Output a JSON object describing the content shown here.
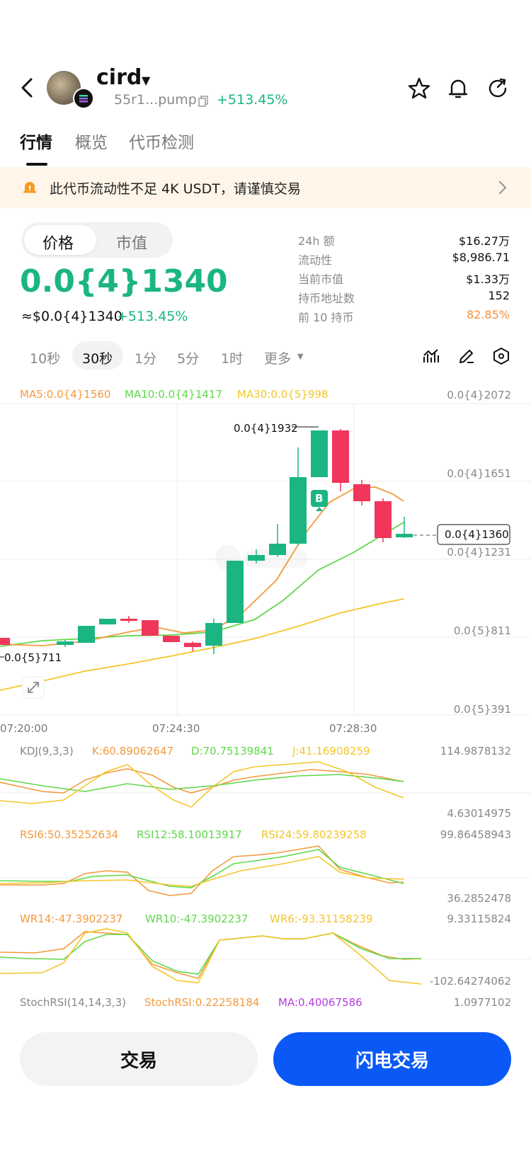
{
  "header": {
    "token_name": "cird",
    "address": "55r1...pump",
    "change": "+513.45%",
    "icons": [
      "back-arrow-icon",
      "star-icon",
      "bell-icon",
      "share-icon",
      "copy-icon",
      "solana-icon"
    ]
  },
  "tabs": [
    "行情",
    "概览",
    "代币检测"
  ],
  "warning": {
    "text": "此代币流动性不足 4K USDT，请谨慎交易"
  },
  "toggle": [
    "价格",
    "市值"
  ],
  "price": {
    "main": "0.0{4}1340",
    "usd": "≈$0.0{4}1340",
    "change": "+513.45%"
  },
  "stats": [
    {
      "label": "24h  额",
      "value": "$16.27万"
    },
    {
      "label": "流动性",
      "value": "$8,986.71"
    },
    {
      "label": "当前市值",
      "value": "$1.33万"
    },
    {
      "label": "持币地址数",
      "value": "152"
    },
    {
      "label": "前 10 持币",
      "value": "82.85%"
    }
  ],
  "intervals": [
    "10秒",
    "30秒",
    "1分",
    "5分",
    "1时",
    "更多"
  ],
  "ma_legend": {
    "ma5": "MA5:0.0{4}1560",
    "ma10": "MA10:0.0{4}1417",
    "ma30": "MA30:0.0{5}998"
  },
  "y_axis": [
    "0.0{4}2072",
    "0.0{4}1651",
    "0.0{4}1231",
    "0.0{5}811",
    "0.0{5}391"
  ],
  "x_axis": [
    "07:20:00",
    "07:24:30",
    "07:28:30"
  ],
  "chart_labels": {
    "high": "0.0{4}1932",
    "low": "0.0{5}711",
    "current": "0.0{4}1360",
    "buy_marker": "B"
  },
  "kdj": {
    "title": "KDJ(9,3,3)",
    "k": "K:60.89062647",
    "d": "D:70.75139841",
    "j": "J:41.16908259",
    "max": "114.9878132",
    "min": "4.63014975"
  },
  "rsi": {
    "r6": "RSI6:50.35252634",
    "r12": "RSI12:58.10013917",
    "r24": "RSI24:59.80239258",
    "max": "99.86458943",
    "min": "36.2852478"
  },
  "wr": {
    "w14": "WR14:-47.3902237",
    "w10": "WR10:-47.3902237",
    "w6": "WR6:-93.31158239",
    "max": "9.33115824",
    "min": "-102.64274062"
  },
  "stoch": {
    "title": "StochRSI(14,14,3,3)",
    "val": "StochRSI:0.22258184",
    "ma": "MA:0.40067586",
    "max": "1.0977102"
  },
  "buttons": {
    "trade": "交易",
    "flash": "闪电交易"
  },
  "colors": {
    "up": "#1bb583",
    "down": "#f0365a",
    "ma5": "#f39a3d",
    "ma10": "#5fd84a",
    "ma30": "#f4c62a",
    "accent": "#0a59f7"
  }
}
